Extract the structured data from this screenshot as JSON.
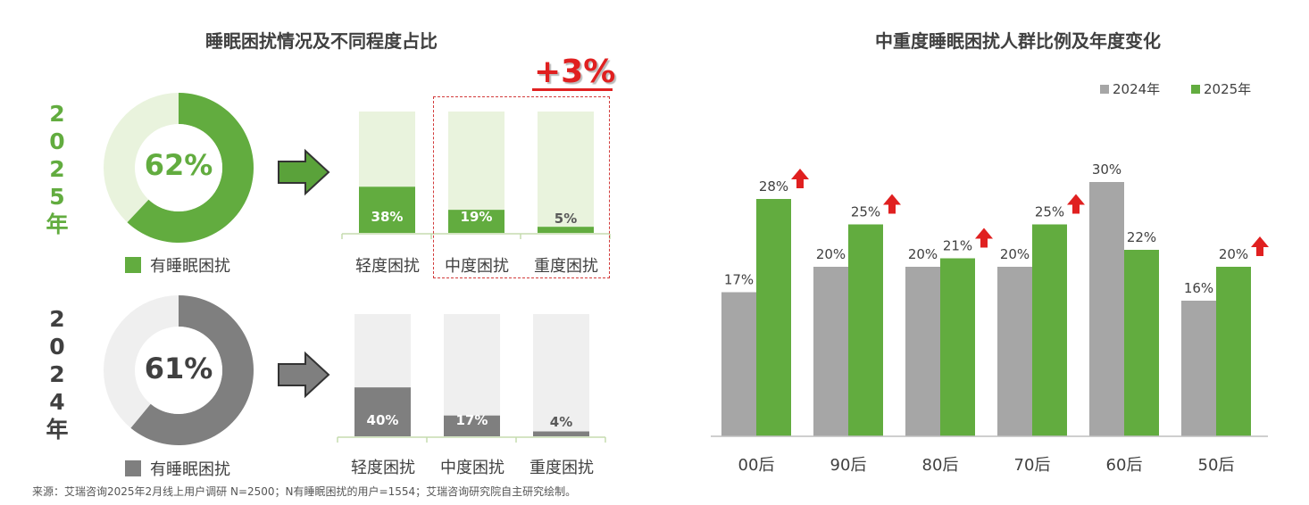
{
  "left_panel": {
    "title": "睡眠困扰情况及不同程度占比",
    "source": "来源：艾瑞咨询2025年2月线上用户调研 N=2500；N有睡眠困扰的用户=1554；艾瑞咨询研究院自主研究绘制。",
    "increase_label": "+3%",
    "colors": {
      "green": "#62ac3f",
      "green_light": "#e9f3dd",
      "grey": "#7f7f7f",
      "grey_light": "#efefef",
      "arrow_green": "#5aa23a",
      "arrow_grey": "#7f7f7f"
    },
    "years": [
      {
        "year_chars": [
          "2",
          "0",
          "2",
          "5",
          "年"
        ],
        "donut_percent_label": "62%",
        "donut_value": 62,
        "legend_label": "有睡眠困扰",
        "severity": [
          {
            "label": "轻度困扰",
            "value": 38,
            "value_label": "38%"
          },
          {
            "label": "中度困扰",
            "value": 19,
            "value_label": "19%"
          },
          {
            "label": "重度困扰",
            "value": 5,
            "value_label": "5%"
          }
        ]
      },
      {
        "year_chars": [
          "2",
          "0",
          "2",
          "4",
          "年"
        ],
        "donut_percent_label": "61%",
        "donut_value": 61,
        "legend_label": "有睡眠困扰",
        "severity": [
          {
            "label": "轻度困扰",
            "value": 40,
            "value_label": "40%"
          },
          {
            "label": "中度困扰",
            "value": 17,
            "value_label": "17%"
          },
          {
            "label": "重度困扰",
            "value": 4,
            "value_label": "4%"
          }
        ]
      }
    ]
  },
  "chart_data": {
    "type": "bar",
    "title": "中重度睡眠困扰人群比例及年度变化",
    "categories": [
      "00后",
      "90后",
      "80后",
      "70后",
      "60后",
      "50后"
    ],
    "series": [
      {
        "name": "2024年",
        "values": [
          17,
          20,
          20,
          20,
          30,
          16
        ],
        "labels": [
          "17%",
          "20%",
          "20%",
          "20%",
          "30%",
          "16%"
        ],
        "color": "#a6a6a6"
      },
      {
        "name": "2025年",
        "values": [
          28,
          25,
          21,
          25,
          22,
          20
        ],
        "labels": [
          "28%",
          "25%",
          "21%",
          "25%",
          "22%",
          "20%"
        ],
        "color": "#62ac3f"
      }
    ],
    "increase_markers": [
      true,
      true,
      true,
      true,
      false,
      true
    ],
    "marker_color": "#e02020",
    "legend_position": "top-right",
    "grid": false,
    "ylim": [
      0,
      35
    ]
  }
}
